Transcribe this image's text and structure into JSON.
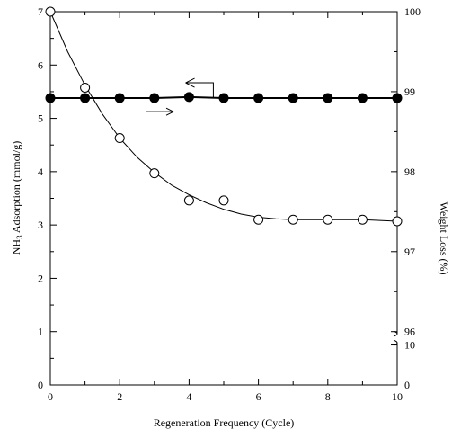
{
  "chart_data": {
    "type": "scatter",
    "title": "",
    "xlabel": "Regeneration Frequency (Cycle)",
    "xlim": [
      0,
      10
    ],
    "x_ticks": [
      "0",
      "2",
      "4",
      "6",
      "8",
      "10"
    ],
    "y_left": {
      "label_main": "NH",
      "label_sub": "3",
      "label_rest": " Adsorption (mmol/g)",
      "ylim": [
        0,
        7
      ],
      "ticks": [
        "0",
        "1",
        "2",
        "3",
        "4",
        "5",
        "6",
        "7"
      ]
    },
    "y_right": {
      "label": "Weight Loss (%)",
      "upper_ticks": [
        "96",
        "97",
        "98",
        "99",
        "100"
      ],
      "upper_range": [
        96,
        100
      ],
      "lower_ticks": [
        "0",
        "10"
      ],
      "lower_range": [
        0,
        10
      ]
    },
    "series": [
      {
        "axis": "left",
        "marker": "filled-circle",
        "x": [
          0,
          1,
          2,
          3,
          4,
          5,
          6,
          7,
          8,
          9,
          10
        ],
        "y": [
          5.38,
          5.38,
          5.38,
          5.38,
          5.4,
          5.38,
          5.38,
          5.38,
          5.38,
          5.38,
          5.38
        ]
      },
      {
        "axis": "right",
        "marker": "open-circle",
        "x": [
          0,
          1,
          2,
          3,
          4,
          5,
          6,
          7,
          8,
          9,
          10
        ],
        "y": [
          100,
          99.05,
          98.42,
          97.98,
          97.64,
          97.64,
          97.4,
          97.4,
          97.4,
          97.4,
          97.38
        ]
      }
    ],
    "fit_curve": {
      "axis": "right",
      "x": [
        0,
        0.5,
        1,
        1.5,
        2,
        2.5,
        3,
        3.5,
        4,
        4.5,
        5,
        5.5,
        6,
        6.5,
        7,
        7.5,
        8,
        8.5,
        9,
        9.5,
        10
      ],
      "y": [
        100,
        99.5,
        99.08,
        98.72,
        98.42,
        98.18,
        97.99,
        97.83,
        97.71,
        97.61,
        97.53,
        97.47,
        97.43,
        97.41,
        97.4,
        97.4,
        97.4,
        97.4,
        97.4,
        97.39,
        97.38
      ]
    },
    "annotations": [
      {
        "type": "arrow-left",
        "points_to": "left axis"
      },
      {
        "type": "arrow-right",
        "points_to": "right axis"
      }
    ],
    "grid": false,
    "legend": "none"
  }
}
